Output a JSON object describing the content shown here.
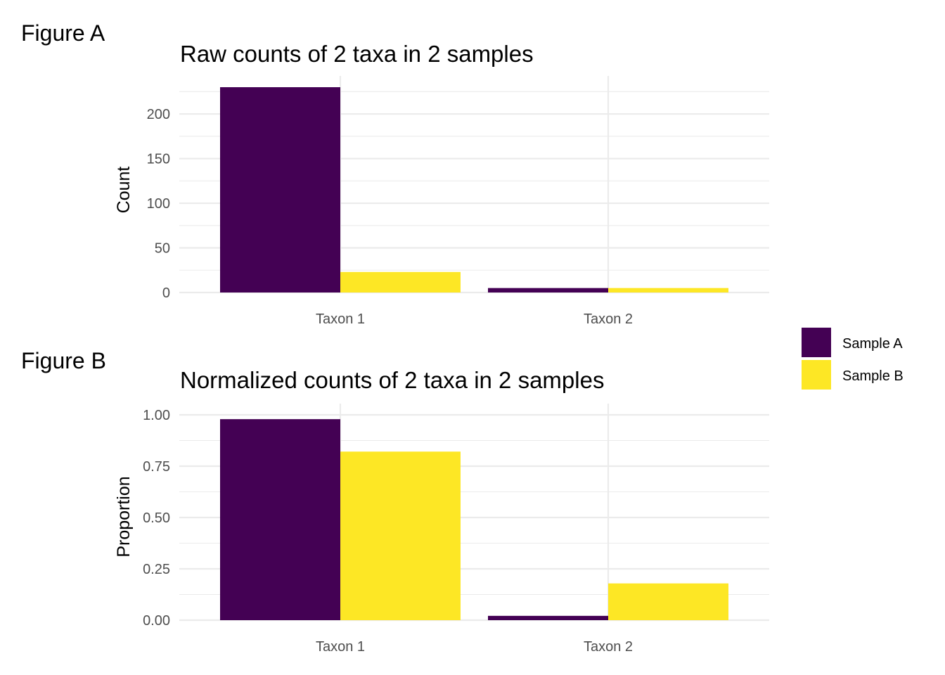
{
  "figure_labels": [
    "Figure A",
    "Figure B"
  ],
  "legend": {
    "entries": [
      {
        "label": "Sample A",
        "color": "#440154"
      },
      {
        "label": "Sample B",
        "color": "#FDE725"
      }
    ]
  },
  "chart_data": [
    {
      "type": "bar",
      "title": "Raw counts of 2 taxa in 2 samples",
      "xlabel": "",
      "ylabel": "Count",
      "categories": [
        "Taxon 1",
        "Taxon 2"
      ],
      "series": [
        {
          "name": "Sample A",
          "values": [
            230,
            5
          ]
        },
        {
          "name": "Sample B",
          "values": [
            23,
            5
          ]
        }
      ],
      "ylim": [
        0,
        230
      ],
      "yticks": [
        0,
        50,
        100,
        150,
        200
      ],
      "ytick_labels": [
        "0",
        "50",
        "100",
        "150",
        "200"
      ],
      "grid": true
    },
    {
      "type": "bar",
      "title": "Normalized counts of 2 taxa in 2 samples",
      "xlabel": "",
      "ylabel": "Proportion",
      "categories": [
        "Taxon 1",
        "Taxon 2"
      ],
      "series": [
        {
          "name": "Sample A",
          "values": [
            0.979,
            0.021
          ]
        },
        {
          "name": "Sample B",
          "values": [
            0.821,
            0.179
          ]
        }
      ],
      "ylim": [
        0,
        1.0
      ],
      "yticks": [
        0,
        0.25,
        0.5,
        0.75,
        1.0
      ],
      "ytick_labels": [
        "0.00",
        "0.25",
        "0.50",
        "0.75",
        "1.00"
      ],
      "grid": true
    }
  ]
}
